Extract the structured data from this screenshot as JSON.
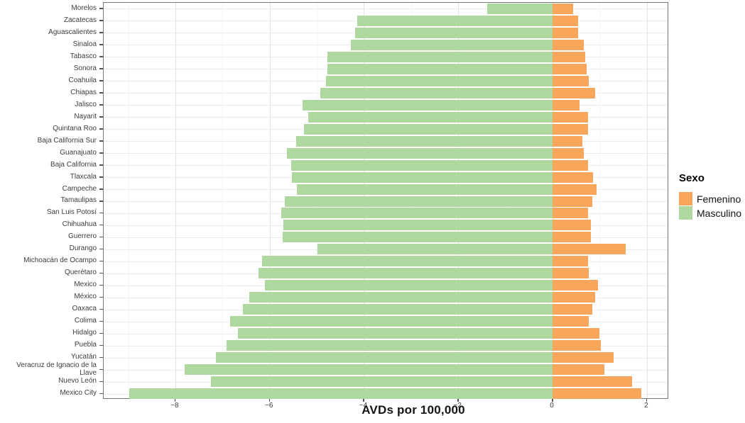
{
  "chart_data": {
    "type": "bar",
    "orientation": "horizontal-diverging",
    "title": "",
    "xlabel": "AVDs por 100,000",
    "ylabel": "",
    "xlim": [
      -9.52,
      2.47
    ],
    "x_ticks": [
      -8,
      -6,
      -4,
      -2,
      0,
      2
    ],
    "x_minor_ticks": [
      -9,
      -7,
      -5,
      -3,
      -1,
      1
    ],
    "grid": true,
    "legend": {
      "title": "Sexo",
      "position": "right",
      "entries": [
        {
          "label": "Femenino",
          "color": "#F7A65C"
        },
        {
          "label": "Masculino",
          "color": "#AFD8A0"
        }
      ]
    },
    "categories": [
      "Morelos",
      "Zacatecas",
      "Aguascalientes",
      "Sinaloa",
      "Tabasco",
      "Sonora",
      "Coahuila",
      "Chiapas",
      "Jalisco",
      "Nayarit",
      "Quintana Roo",
      "Baja California Sur",
      "Guanajuato",
      "Baja California",
      "Tlaxcala",
      "Campeche",
      "Tamaulipas",
      "San Luis Potosí",
      "Chihuahua",
      "Guerrero",
      "Durango",
      "Michoacán de Ocampo",
      "Querétaro",
      "Mexico",
      "México",
      "Oaxaca",
      "Colima",
      "Hidalgo",
      "Puebla",
      "Yucatán",
      "Veracruz de Ignacio de la Llave",
      "Nuevo León",
      "Mexico City"
    ],
    "series": [
      {
        "name": "Masculino",
        "color": "#AFD8A0",
        "values": [
          -1.39,
          -4.14,
          -4.19,
          -4.28,
          -4.77,
          -4.77,
          -4.8,
          -4.92,
          -5.3,
          -5.18,
          -5.27,
          -5.44,
          -5.63,
          -5.54,
          -5.53,
          -5.42,
          -5.68,
          -5.75,
          -5.71,
          -5.72,
          -4.98,
          -6.16,
          -6.23,
          -6.1,
          -6.43,
          -6.57,
          -6.84,
          -6.67,
          -6.91,
          -7.14,
          -7.8,
          -7.24,
          -8.98
        ]
      },
      {
        "name": "Femenino",
        "color": "#F7A65C",
        "values": [
          0.44,
          0.54,
          0.54,
          0.66,
          0.69,
          0.73,
          0.77,
          0.9,
          0.57,
          0.76,
          0.76,
          0.63,
          0.66,
          0.75,
          0.86,
          0.93,
          0.84,
          0.75,
          0.82,
          0.81,
          1.55,
          0.75,
          0.77,
          0.96,
          0.9,
          0.85,
          0.77,
          0.99,
          1.02,
          1.29,
          1.1,
          1.68,
          1.89
        ]
      }
    ]
  },
  "colors": {
    "femenino": "#F7A65C",
    "masculino": "#AFD8A0",
    "panel_border": "#777777",
    "grid_major": "#e4e4e4",
    "grid_minor": "#f3f3f3",
    "axis_text": "#3c3c3c",
    "axis_title": "#141414"
  }
}
